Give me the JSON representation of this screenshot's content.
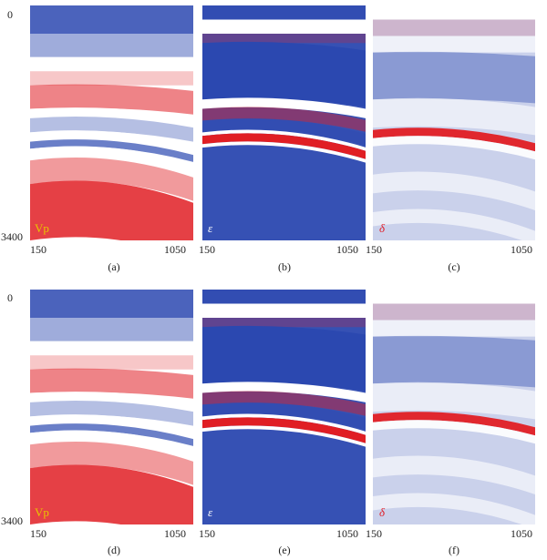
{
  "figure": {
    "depth_top": "0",
    "depth_bottom": "3400",
    "x_start": "150",
    "x_end": "1050",
    "rows": [
      {
        "panels": [
          {
            "caption": "(a)",
            "label": "Vp",
            "kind": "vp"
          },
          {
            "caption": "(b)",
            "label": "ε",
            "kind": "eps"
          },
          {
            "caption": "(c)",
            "label": "δ",
            "kind": "del"
          }
        ]
      },
      {
        "panels": [
          {
            "caption": "(d)",
            "label": "Vp",
            "kind": "vp"
          },
          {
            "caption": "(e)",
            "label": "ε",
            "kind": "eps"
          },
          {
            "caption": "(f)",
            "label": "δ",
            "kind": "del"
          }
        ]
      }
    ]
  },
  "colors": {
    "red": "#e01e24",
    "blue": "#2b48b0",
    "white": "#ffffff"
  }
}
